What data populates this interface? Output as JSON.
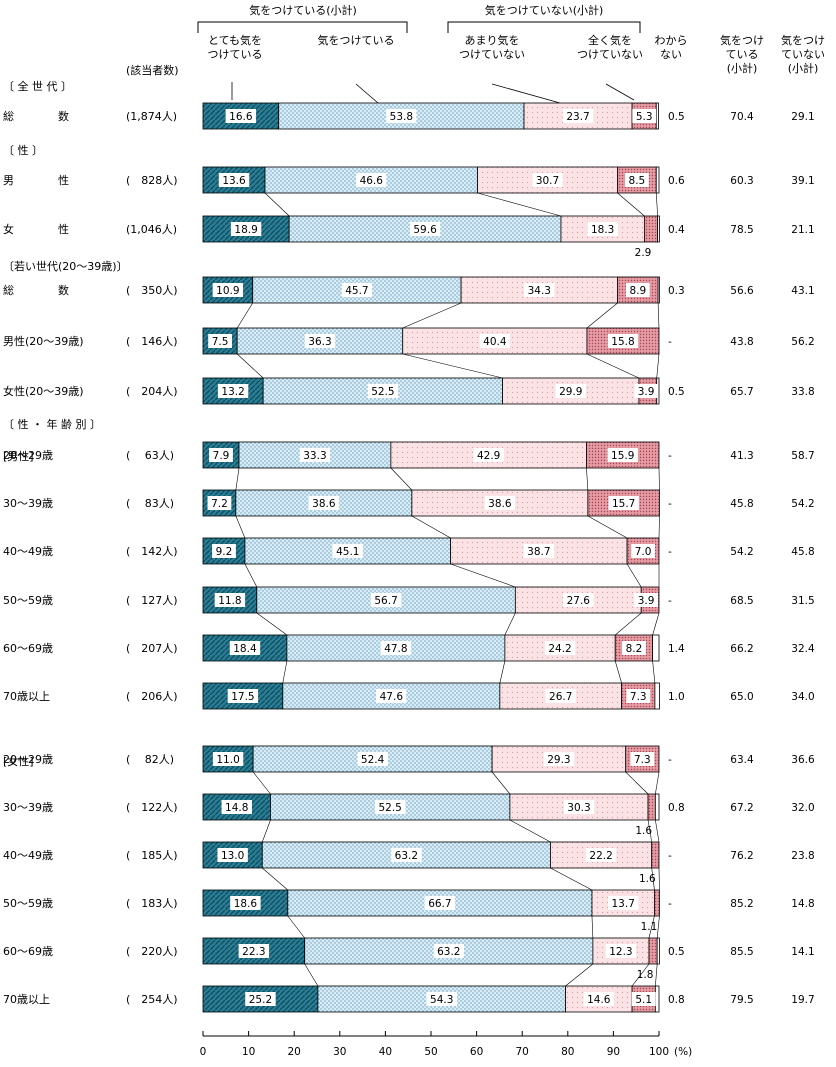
{
  "chart_data": {
    "type": "bar",
    "orientation": "horizontal",
    "stacked": true,
    "xlabel": "(%)",
    "xlim": [
      0,
      100
    ],
    "xticks": [
      "0",
      "10",
      "20",
      "30",
      "40",
      "50",
      "60",
      "70",
      "80",
      "90",
      "100"
    ],
    "group_headers": {
      "care": "気をつけている(小計)",
      "nocare": "気をつけていない(小計)"
    },
    "col_header_n": "(該当者数)",
    "legend": [
      "とても気を\nつけている",
      "気をつけている",
      "あまり気を\nつけていない",
      "全く気を\nつけていない",
      "わから\nない"
    ],
    "col_headers": [
      "気をつけ\nている\n(小計)",
      "気をつけ\nていない\n(小計)"
    ],
    "series": [
      {
        "name": "とても気をつけている",
        "color": "#2a7f96"
      },
      {
        "name": "気をつけている",
        "color": "#d7ecf6"
      },
      {
        "name": "あまり気をつけていない",
        "color": "#fbe2e4"
      },
      {
        "name": "全く気をつけていない",
        "color": "#e69aa3"
      },
      {
        "name": "わからない",
        "color": "#ffffff"
      }
    ],
    "sections": [
      "〔 全 世 代 〕",
      "〔 性 〕",
      "〔若い世代(20〜39歳)〕",
      "〔 性 ・ 年 齢 別 〕"
    ],
    "sublabels": {
      "male": "[男性]",
      "female": "[女性]"
    },
    "rows": [
      {
        "label": "総　　　　数",
        "n": "(1,874人)",
        "values": [
          16.6,
          53.8,
          23.7,
          5.3,
          0.5
        ],
        "labels": [
          "16.6",
          "53.8",
          "23.7",
          "5.3",
          "0.5"
        ],
        "subtotal_care": "70.4",
        "subtotal_nocare": "29.1"
      },
      {
        "label": "男　　　　性",
        "n": "(　828人)",
        "values": [
          13.6,
          46.6,
          30.7,
          8.5,
          0.6
        ],
        "labels": [
          "13.6",
          "46.6",
          "30.7",
          "8.5",
          "0.6"
        ],
        "subtotal_care": "60.3",
        "subtotal_nocare": "39.1"
      },
      {
        "label": "女　　　　性",
        "n": "(1,046人)",
        "values": [
          18.9,
          59.6,
          18.3,
          2.9,
          0.4
        ],
        "labels": [
          "18.9",
          "59.6",
          "18.3",
          "2.9",
          "0.4"
        ],
        "subtotal_care": "78.5",
        "subtotal_nocare": "21.1"
      },
      {
        "label": "総　　　　数",
        "n": "(　350人)",
        "values": [
          10.9,
          45.7,
          34.3,
          8.9,
          0.3
        ],
        "labels": [
          "10.9",
          "45.7",
          "34.3",
          "8.9",
          "0.3"
        ],
        "subtotal_care": "56.6",
        "subtotal_nocare": "43.1"
      },
      {
        "label": "男性(20〜39歳)",
        "n": "(　146人)",
        "values": [
          7.5,
          36.3,
          40.4,
          15.8,
          0
        ],
        "labels": [
          "7.5",
          "36.3",
          "40.4",
          "15.8",
          "-"
        ],
        "subtotal_care": "43.8",
        "subtotal_nocare": "56.2"
      },
      {
        "label": "女性(20〜39歳)",
        "n": "(　204人)",
        "values": [
          13.2,
          52.5,
          29.9,
          3.9,
          0.5
        ],
        "labels": [
          "13.2",
          "52.5",
          "29.9",
          "3.9",
          "0.5"
        ],
        "subtotal_care": "65.7",
        "subtotal_nocare": "33.8"
      },
      {
        "label": "20〜29歳",
        "n": "(　 63人)",
        "values": [
          7.9,
          33.3,
          42.9,
          15.9,
          0
        ],
        "labels": [
          "7.9",
          "33.3",
          "42.9",
          "15.9",
          "-"
        ],
        "subtotal_care": "41.3",
        "subtotal_nocare": "58.7"
      },
      {
        "label": "30〜39歳",
        "n": "(　 83人)",
        "values": [
          7.2,
          38.6,
          38.6,
          15.7,
          0
        ],
        "labels": [
          "7.2",
          "38.6",
          "38.6",
          "15.7",
          "-"
        ],
        "subtotal_care": "45.8",
        "subtotal_nocare": "54.2"
      },
      {
        "label": "40〜49歳",
        "n": "(　142人)",
        "values": [
          9.2,
          45.1,
          38.7,
          7.0,
          0
        ],
        "labels": [
          "9.2",
          "45.1",
          "38.7",
          "7.0",
          "-"
        ],
        "subtotal_care": "54.2",
        "subtotal_nocare": "45.8"
      },
      {
        "label": "50〜59歳",
        "n": "(　127人)",
        "values": [
          11.8,
          56.7,
          27.6,
          3.9,
          0
        ],
        "labels": [
          "11.8",
          "56.7",
          "27.6",
          "3.9",
          "-"
        ],
        "subtotal_care": "68.5",
        "subtotal_nocare": "31.5"
      },
      {
        "label": "60〜69歳",
        "n": "(　207人)",
        "values": [
          18.4,
          47.8,
          24.2,
          8.2,
          1.4
        ],
        "labels": [
          "18.4",
          "47.8",
          "24.2",
          "8.2",
          "1.4"
        ],
        "subtotal_care": "66.2",
        "subtotal_nocare": "32.4"
      },
      {
        "label": "70歳以上",
        "n": "(　206人)",
        "values": [
          17.5,
          47.6,
          26.7,
          7.3,
          1.0
        ],
        "labels": [
          "17.5",
          "47.6",
          "26.7",
          "7.3",
          "1.0"
        ],
        "subtotal_care": "65.0",
        "subtotal_nocare": "34.0"
      },
      {
        "label": "20〜29歳",
        "n": "(　 82人)",
        "values": [
          11.0,
          52.4,
          29.3,
          7.3,
          0
        ],
        "labels": [
          "11.0",
          "52.4",
          "29.3",
          "7.3",
          "-"
        ],
        "subtotal_care": "63.4",
        "subtotal_nocare": "36.6"
      },
      {
        "label": "30〜39歳",
        "n": "(　122人)",
        "values": [
          14.8,
          52.5,
          30.3,
          1.6,
          0.8
        ],
        "labels": [
          "14.8",
          "52.5",
          "30.3",
          "1.6",
          "0.8"
        ],
        "subtotal_care": "67.2",
        "subtotal_nocare": "32.0"
      },
      {
        "label": "40〜49歳",
        "n": "(　185人)",
        "values": [
          13.0,
          63.2,
          22.2,
          1.6,
          0
        ],
        "labels": [
          "13.0",
          "63.2",
          "22.2",
          "1.6",
          "-"
        ],
        "subtotal_care": "76.2",
        "subtotal_nocare": "23.8"
      },
      {
        "label": "50〜59歳",
        "n": "(　183人)",
        "values": [
          18.6,
          66.7,
          13.7,
          1.1,
          0
        ],
        "labels": [
          "18.6",
          "66.7",
          "13.7",
          "1.1",
          "-"
        ],
        "subtotal_care": "85.2",
        "subtotal_nocare": "14.8"
      },
      {
        "label": "60〜69歳",
        "n": "(　220人)",
        "values": [
          22.3,
          63.2,
          12.3,
          1.8,
          0.5
        ],
        "labels": [
          "22.3",
          "63.2",
          "12.3",
          "1.8",
          "0.5"
        ],
        "subtotal_care": "85.5",
        "subtotal_nocare": "14.1"
      },
      {
        "label": "70歳以上",
        "n": "(　254人)",
        "values": [
          25.2,
          54.3,
          14.6,
          5.1,
          0.8
        ],
        "labels": [
          "25.2",
          "54.3",
          "14.6",
          "5.1",
          "0.8"
        ],
        "subtotal_care": "79.5",
        "subtotal_nocare": "19.7"
      }
    ]
  }
}
